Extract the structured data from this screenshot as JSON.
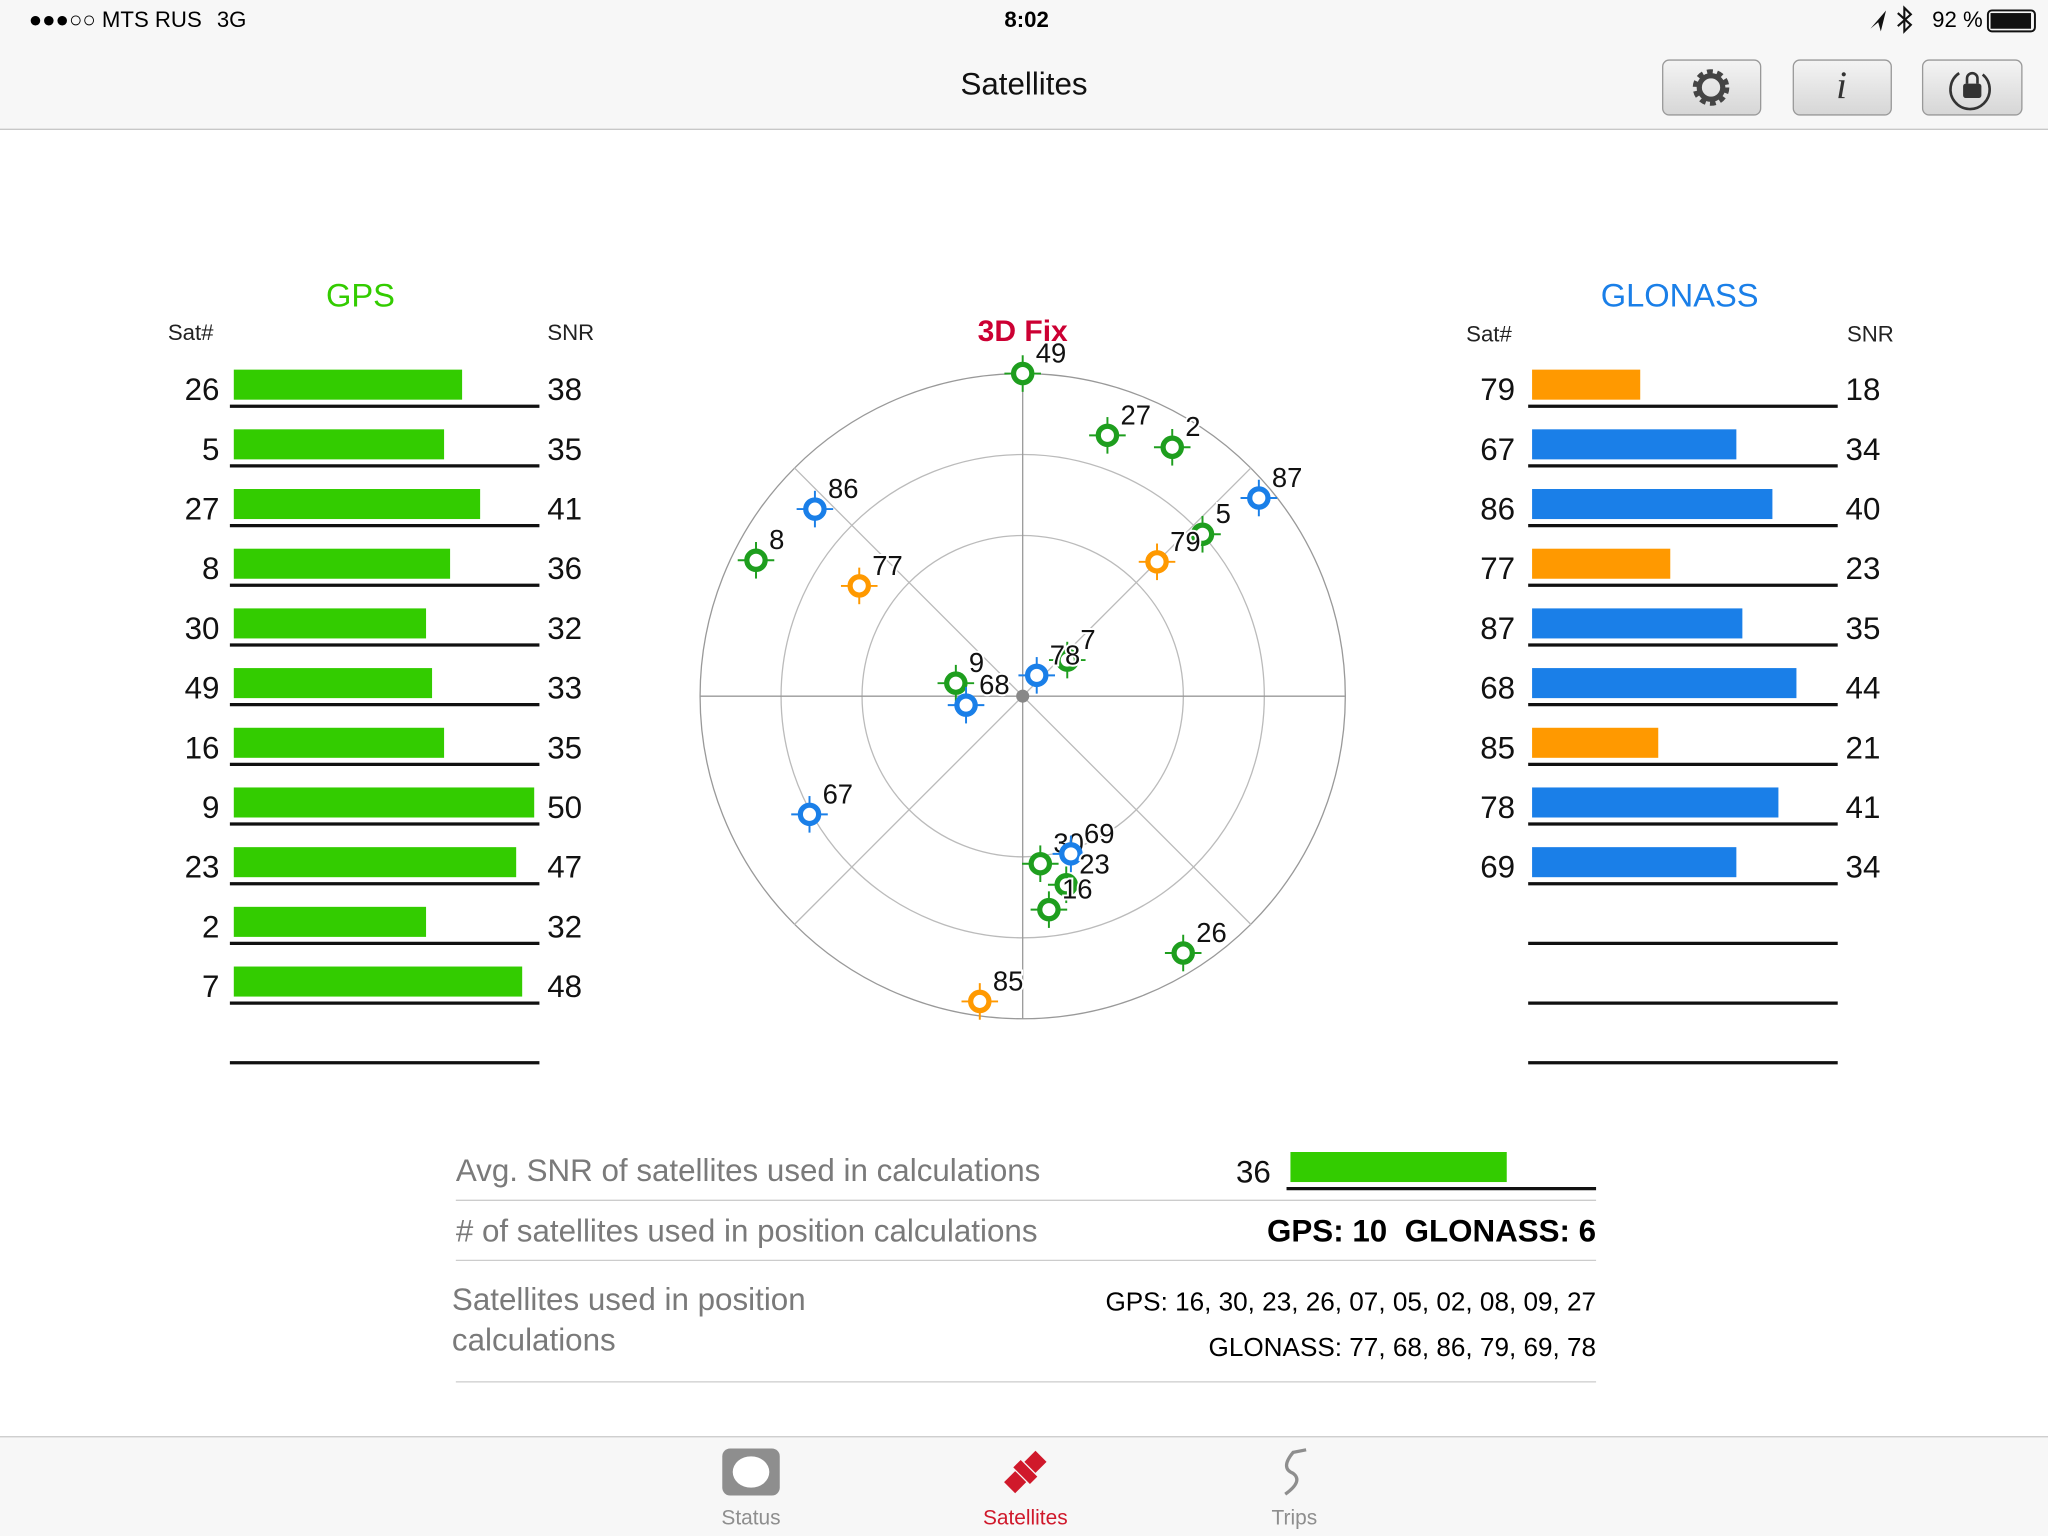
{
  "status_bar": {
    "carrier": "●●●○○ MTS RUS",
    "network": "3G",
    "time": "8:02",
    "battery": "92 %"
  },
  "nav": {
    "title": "Satellites"
  },
  "gps": {
    "title": "GPS",
    "sat_header": "Sat#",
    "snr_header": "SNR",
    "color": "#33cc00",
    "rows": [
      {
        "sat": "26",
        "snr": 38
      },
      {
        "sat": "5",
        "snr": 35
      },
      {
        "sat": "27",
        "snr": 41
      },
      {
        "sat": "8",
        "snr": 36
      },
      {
        "sat": "30",
        "snr": 32
      },
      {
        "sat": "49",
        "snr": 33
      },
      {
        "sat": "16",
        "snr": 35
      },
      {
        "sat": "9",
        "snr": 50
      },
      {
        "sat": "23",
        "snr": 47
      },
      {
        "sat": "2",
        "snr": 32
      },
      {
        "sat": "7",
        "snr": 48
      }
    ]
  },
  "glonass": {
    "title": "GLONASS",
    "sat_header": "Sat#",
    "snr_header": "SNR",
    "rows": [
      {
        "sat": "79",
        "snr": 18,
        "color": "#ff9900"
      },
      {
        "sat": "67",
        "snr": 34,
        "color": "#1a7fe8"
      },
      {
        "sat": "86",
        "snr": 40,
        "color": "#1a7fe8"
      },
      {
        "sat": "77",
        "snr": 23,
        "color": "#ff9900"
      },
      {
        "sat": "87",
        "snr": 35,
        "color": "#1a7fe8"
      },
      {
        "sat": "68",
        "snr": 44,
        "color": "#1a7fe8"
      },
      {
        "sat": "85",
        "snr": 21,
        "color": "#ff9900"
      },
      {
        "sat": "78",
        "snr": 41,
        "color": "#1a7fe8"
      },
      {
        "sat": "69",
        "snr": 34,
        "color": "#1a7fe8"
      }
    ]
  },
  "sky_plot": {
    "fix": "3D Fix",
    "satellites": [
      {
        "id": "49",
        "azimuth": 0,
        "elevation": 0,
        "color": "#1e9e1e"
      },
      {
        "id": "27",
        "azimuth": 18,
        "elevation": 13.5,
        "color": "#1e9e1e"
      },
      {
        "id": "2",
        "azimuth": 31,
        "elevation": 9,
        "color": "#1e9e1e"
      },
      {
        "id": "87",
        "azimuth": 50,
        "elevation": 4,
        "color": "#1a7fe8"
      },
      {
        "id": "5",
        "azimuth": 48,
        "elevation": 22.5,
        "color": "#1e9e1e"
      },
      {
        "id": "79",
        "azimuth": 45,
        "elevation": 37,
        "color": "#ff9900"
      },
      {
        "id": "7",
        "azimuth": 51,
        "elevation": 74,
        "color": "#1e9e1e"
      },
      {
        "id": "78",
        "azimuth": 34,
        "elevation": 83,
        "color": "#1a7fe8"
      },
      {
        "id": "9",
        "azimuth": 281,
        "elevation": 71,
        "color": "#1e9e1e"
      },
      {
        "id": "68",
        "azimuth": 261,
        "elevation": 74,
        "color": "#1a7fe8"
      },
      {
        "id": "86",
        "azimuth": 312,
        "elevation": 12,
        "color": "#1a7fe8"
      },
      {
        "id": "8",
        "azimuth": 297,
        "elevation": 6.5,
        "color": "#1e9e1e"
      },
      {
        "id": "77",
        "azimuth": 304,
        "elevation": 35,
        "color": "#ff9900"
      },
      {
        "id": "67",
        "azimuth": 241,
        "elevation": 22,
        "color": "#1a7fe8"
      },
      {
        "id": "30",
        "azimuth": 174,
        "elevation": 43,
        "color": "#1e9e1e"
      },
      {
        "id": "69",
        "azimuth": 163,
        "elevation": 44,
        "color": "#1a7fe8"
      },
      {
        "id": "23",
        "azimuth": 167,
        "elevation": 36,
        "color": "#1e9e1e"
      },
      {
        "id": "16",
        "azimuth": 173,
        "elevation": 30,
        "color": "#1e9e1e"
      },
      {
        "id": "26",
        "azimuth": 148,
        "elevation": 5.5,
        "color": "#1e9e1e"
      },
      {
        "id": "85",
        "azimuth": 188,
        "elevation": 4,
        "color": "#ff9900"
      }
    ]
  },
  "summary": {
    "avg_snr_label": "Avg. SNR of satellites used in calculations",
    "avg_snr": 36,
    "avg_snr_color": "#33cc00",
    "count_label": "# of satellites used in position calculations",
    "count_value": "GPS: 10  GLONASS: 6",
    "used_label": "Satellites used in position calculations",
    "used_gps": "GPS: 16, 30, 23, 26, 07, 05, 02, 08, 09, 27",
    "used_glonass": "GLONASS: 77, 68, 86, 79, 69, 78"
  },
  "tabs": [
    "Status",
    "Satellites",
    "Trips"
  ]
}
